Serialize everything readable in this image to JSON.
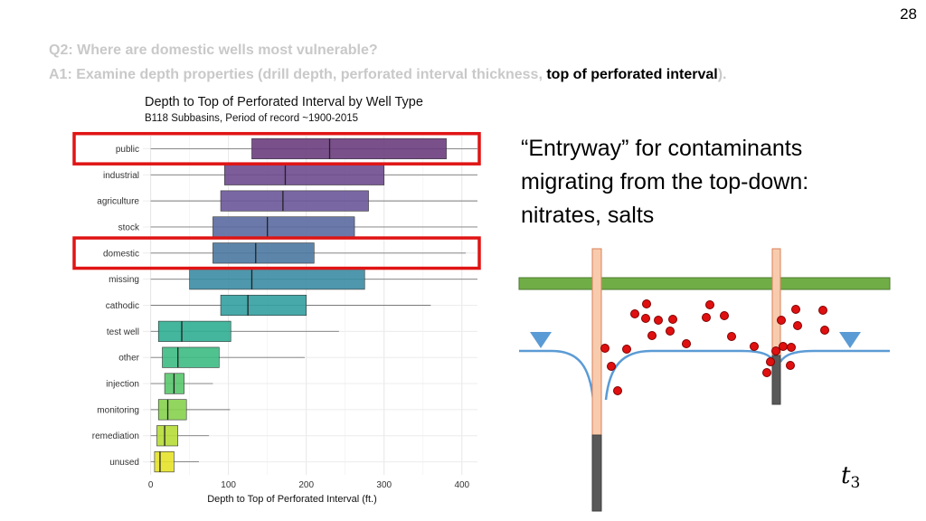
{
  "slide": {
    "number": "28",
    "question": "Q2: Where are domestic wells most vulnerable?",
    "answer_prefix": "A1: Examine depth properties (drill depth, perforated interval thickness, ",
    "answer_highlight": "top of perforated interval",
    "answer_suffix": ")."
  },
  "callout": {
    "line1": "“Entryway” for contaminants",
    "line2": "migrating from the top-down:",
    "line3": "nitrates, salts"
  },
  "diagram": {
    "time_label_base": "t",
    "time_label_sub": "3"
  },
  "chart_data": {
    "type": "boxplot",
    "title": "Depth to Top of Perforated Interval by Well Type",
    "subtitle": "B118 Subbasins, Period of record ~1900-2015",
    "xlabel": "Depth to Top of Perforated Interval (ft.)",
    "xlim": [
      -10,
      420
    ],
    "xticks": [
      0,
      100,
      200,
      300,
      400
    ],
    "grid": true,
    "highlighted": [
      "public",
      "domestic"
    ],
    "categories": [
      "public",
      "industrial",
      "agriculture",
      "stock",
      "domestic",
      "missing",
      "cathodic",
      "test well",
      "other",
      "injection",
      "monitoring",
      "remediation",
      "unused"
    ],
    "boxes": [
      {
        "name": "public",
        "whisker_low": 0,
        "q1": 130,
        "median": 230,
        "q3": 380,
        "whisker_high": 420,
        "color": "#6c3d7e"
      },
      {
        "name": "industrial",
        "whisker_low": 0,
        "q1": 95,
        "median": 173,
        "q3": 300,
        "whisker_high": 420,
        "color": "#6e4a8e"
      },
      {
        "name": "agriculture",
        "whisker_low": 0,
        "q1": 90,
        "median": 170,
        "q3": 280,
        "whisker_high": 420,
        "color": "#6a579a"
      },
      {
        "name": "stock",
        "whisker_low": 0,
        "q1": 80,
        "median": 150,
        "q3": 262,
        "whisker_high": 420,
        "color": "#5a6aa0"
      },
      {
        "name": "domestic",
        "whisker_low": 0,
        "q1": 80,
        "median": 135,
        "q3": 210,
        "whisker_high": 405,
        "color": "#4b78a0"
      },
      {
        "name": "missing",
        "whisker_low": 0,
        "q1": 50,
        "median": 130,
        "q3": 275,
        "whisker_high": 420,
        "color": "#3b8ca3"
      },
      {
        "name": "cathodic",
        "whisker_low": 0,
        "q1": 90,
        "median": 125,
        "q3": 200,
        "whisker_high": 360,
        "color": "#33a0a0"
      },
      {
        "name": "test well",
        "whisker_low": 0,
        "q1": 10,
        "median": 40,
        "q3": 103,
        "whisker_high": 242,
        "color": "#2fae92"
      },
      {
        "name": "other",
        "whisker_low": 0,
        "q1": 15,
        "median": 35,
        "q3": 88,
        "whisker_high": 198,
        "color": "#3dbb84"
      },
      {
        "name": "injection",
        "whisker_low": 0,
        "q1": 18,
        "median": 30,
        "q3": 43,
        "whisker_high": 80,
        "color": "#58c76c"
      },
      {
        "name": "monitoring",
        "whisker_low": 0,
        "q1": 10,
        "median": 22,
        "q3": 46,
        "whisker_high": 102,
        "color": "#86d24e"
      },
      {
        "name": "remediation",
        "whisker_low": 0,
        "q1": 8,
        "median": 18,
        "q3": 35,
        "whisker_high": 75,
        "color": "#b5dc36"
      },
      {
        "name": "unused",
        "whisker_low": 0,
        "q1": 5,
        "median": 12,
        "q3": 30,
        "whisker_high": 62,
        "color": "#e6e22a"
      }
    ]
  }
}
